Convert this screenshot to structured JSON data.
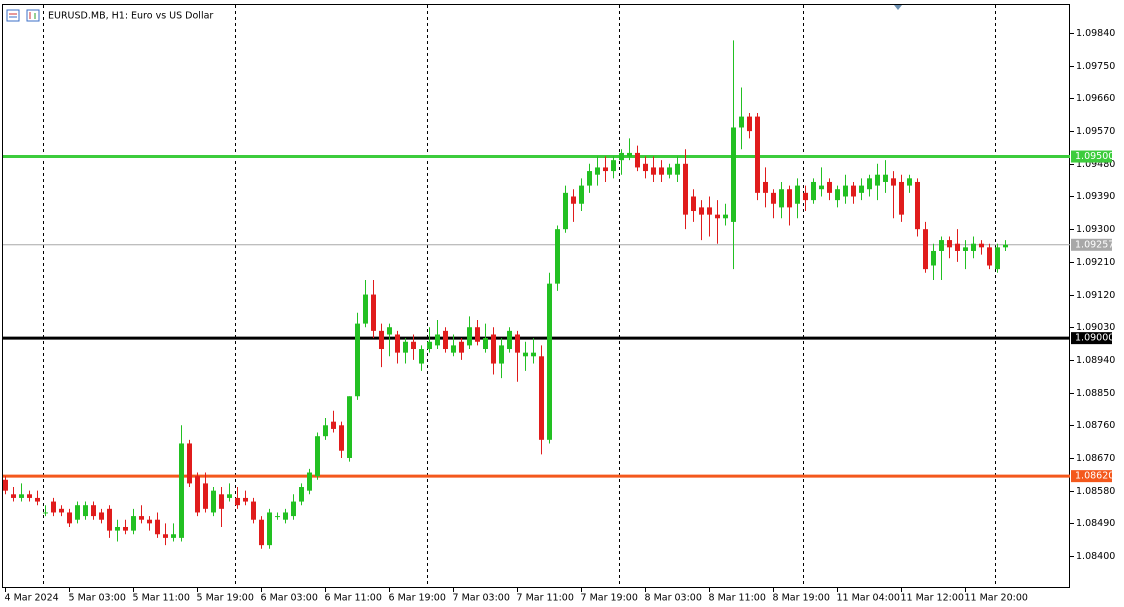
{
  "chart_data": {
    "type": "candlestick",
    "title": "EURUSD.MB, H1:  Euro vs US Dollar",
    "up_color": "#22c022",
    "down_color": "#e01c1c",
    "categories": [
      "4 Mar 2024",
      null,
      null,
      null,
      null,
      null,
      null,
      null,
      "5 Mar 03:00",
      null,
      null,
      null,
      null,
      null,
      null,
      null,
      "5 Mar 11:00",
      null,
      null,
      null,
      null,
      null,
      null,
      null,
      "5 Mar 19:00",
      null,
      null,
      null,
      null,
      null,
      null,
      null,
      "6 Mar 03:00",
      null,
      null,
      null,
      null,
      null,
      null,
      null,
      "6 Mar 11:00",
      null,
      null,
      null,
      null,
      null,
      null,
      null,
      "6 Mar 19:00",
      null,
      null,
      null,
      null,
      null,
      null,
      null,
      "7 Mar 03:00",
      null,
      null,
      null,
      null,
      null,
      null,
      null,
      "7 Mar 11:00",
      null,
      null,
      null,
      null,
      null,
      null,
      null,
      "7 Mar 19:00",
      null,
      null,
      null,
      null,
      null,
      null,
      null,
      "8 Mar 03:00",
      null,
      null,
      null,
      null,
      null,
      null,
      null,
      "8 Mar 11:00",
      null,
      null,
      null,
      null,
      null,
      null,
      null,
      "8 Mar 19:00",
      null,
      null,
      null,
      null,
      null,
      null,
      null,
      "11 Mar 04:00",
      null,
      null,
      null,
      null,
      null,
      null,
      null,
      "11 Mar 12:00",
      null,
      null,
      null,
      null,
      null,
      null,
      null,
      "11 Mar 20:00",
      null,
      null,
      null,
      null,
      null
    ],
    "open": [
      1.0861,
      1.0857,
      1.0856,
      1.0857,
      1.0856,
      1.0852,
      1.0855,
      1.0853,
      1.0852,
      1.085,
      1.0851,
      1.0854,
      1.0852,
      1.0853,
      1.0847,
      1.0848,
      1.0847,
      1.0851,
      1.085,
      1.085,
      1.0846,
      1.0845,
      1.0845,
      1.0871,
      1.0862,
      1.086,
      1.0852,
      1.0857,
      1.0856,
      1.0856,
      1.0856,
      1.0855,
      1.085,
      1.0843,
      1.0851,
      1.085,
      1.0851,
      1.0855,
      1.0858,
      1.0862,
      1.0873,
      1.0877,
      1.0876,
      1.0867,
      1.0884,
      1.0904,
      1.0912,
      1.0902,
      1.0901,
      1.0901,
      1.0896,
      1.0899,
      1.0893,
      1.0897,
      1.0898,
      1.0902,
      1.0896,
      1.0899,
      1.0898,
      1.0903,
      1.0897,
      1.0901,
      1.0893,
      1.0897,
      1.0901,
      1.0895,
      1.0895,
      1.0895,
      1.0872,
      1.0915,
      1.093,
      1.0939,
      1.0937,
      1.0942,
      1.0945,
      1.0947,
      1.0946,
      1.0949,
      1.095,
      1.0951,
      1.0948,
      1.0947,
      1.0947,
      1.0945,
      1.0945,
      1.0948,
      1.0939,
      1.0936,
      1.0936,
      1.0934,
      1.0933,
      1.0932,
      1.0958,
      1.0961,
      1.0961,
      1.0943,
      1.094,
      1.0936,
      1.0941,
      1.0937,
      1.094,
      1.0938,
      1.0941,
      1.0943,
      1.0938,
      1.0939,
      1.0942,
      1.094,
      1.0941,
      1.0942,
      1.0943,
      1.0944,
      1.0943,
      1.0942,
      1.0943,
      1.093,
      1.092,
      1.0924,
      1.0927,
      1.0926,
      1.0924,
      1.0924,
      1.0926,
      1.0925,
      1.0919,
      1.0925
    ],
    "high": [
      1.0862,
      1.0859,
      1.086,
      1.0858,
      1.0858,
      1.0854,
      1.0856,
      1.0854,
      1.0853,
      1.0855,
      1.0855,
      1.0855,
      1.0853,
      1.0854,
      1.085,
      1.085,
      1.0853,
      1.0854,
      1.0851,
      1.0852,
      1.0849,
      1.0849,
      1.0876,
      1.0872,
      1.0863,
      1.0863,
      1.0859,
      1.0859,
      1.086,
      1.0859,
      1.0858,
      1.0856,
      1.0851,
      1.0853,
      1.0852,
      1.0853,
      1.0857,
      1.086,
      1.0864,
      1.0874,
      1.0878,
      1.088,
      1.0877,
      1.0884,
      1.0907,
      1.0916,
      1.0916,
      1.0904,
      1.0904,
      1.0902,
      1.09,
      1.0901,
      1.0898,
      1.0903,
      1.0905,
      1.0903,
      1.0901,
      1.09,
      1.0906,
      1.0905,
      1.0904,
      1.0903,
      1.09,
      1.0903,
      1.0902,
      1.0899,
      1.09,
      1.0898,
      1.0918,
      1.0931,
      1.0942,
      1.0941,
      1.0944,
      1.0948,
      1.095,
      1.095,
      1.095,
      1.0952,
      1.0955,
      1.0953,
      1.095,
      1.095,
      1.0949,
      1.0948,
      1.095,
      1.0952,
      1.0941,
      1.0938,
      1.0939,
      1.0938,
      1.0937,
      1.0982,
      1.0969,
      1.0962,
      1.0962,
      1.0947,
      1.0941,
      1.0943,
      1.0942,
      1.0944,
      1.0942,
      1.0944,
      1.0947,
      1.0944,
      1.0942,
      1.0945,
      1.0943,
      1.0944,
      1.0945,
      1.0948,
      1.0949,
      1.0946,
      1.0945,
      1.0945,
      1.0944,
      1.0932,
      1.0926,
      1.0928,
      1.0928,
      1.093,
      1.0927,
      1.0928,
      1.0927,
      1.0926,
      1.0926,
      1.0927
    ],
    "low": [
      1.0857,
      1.0855,
      1.0855,
      1.0855,
      1.0854,
      1.0851,
      1.0851,
      1.0851,
      1.0848,
      1.0849,
      1.085,
      1.085,
      1.0849,
      1.0845,
      1.0844,
      1.0846,
      1.0846,
      1.0849,
      1.0847,
      1.0845,
      1.0843,
      1.0844,
      1.0844,
      1.0859,
      1.0851,
      1.0852,
      1.0851,
      1.0848,
      1.0855,
      1.0853,
      1.0854,
      1.0849,
      1.0842,
      1.0842,
      1.085,
      1.0849,
      1.085,
      1.0854,
      1.0857,
      1.0861,
      1.0872,
      1.0874,
      1.0867,
      1.0866,
      1.0883,
      1.0903,
      1.09,
      1.0892,
      1.0895,
      1.0893,
      1.0893,
      1.0894,
      1.0891,
      1.0896,
      1.0897,
      1.0896,
      1.0895,
      1.0894,
      1.0897,
      1.0898,
      1.0896,
      1.089,
      1.0889,
      1.0896,
      1.0888,
      1.0891,
      1.0893,
      1.0868,
      1.0871,
      1.0913,
      1.0929,
      1.0932,
      1.0935,
      1.094,
      1.0942,
      1.0943,
      1.0944,
      1.0945,
      1.0949,
      1.0946,
      1.0944,
      1.0943,
      1.0943,
      1.0944,
      1.0943,
      1.093,
      1.0932,
      1.0927,
      1.0928,
      1.0926,
      1.0931,
      1.0919,
      1.0952,
      1.0955,
      1.0938,
      1.0936,
      1.0933,
      1.0933,
      1.0931,
      1.0933,
      1.0935,
      1.0937,
      1.0939,
      1.0938,
      1.0936,
      1.0937,
      1.0937,
      1.0938,
      1.0939,
      1.0938,
      1.094,
      1.0933,
      1.0932,
      1.094,
      1.0928,
      1.0918,
      1.0916,
      1.0916,
      1.0922,
      1.0921,
      1.0919,
      1.0922,
      1.0923,
      1.0919,
      1.0918,
      1.0924
    ],
    "close": [
      1.0858,
      1.0856,
      1.0857,
      1.0856,
      1.0855,
      1.0852,
      1.0852,
      1.0852,
      1.0849,
      1.0854,
      1.0854,
      1.0851,
      1.085,
      1.0847,
      1.0848,
      1.0847,
      1.0851,
      1.085,
      1.0849,
      1.0846,
      1.0845,
      1.0846,
      1.0871,
      1.086,
      1.0852,
      1.0853,
      1.0858,
      1.0853,
      1.0857,
      1.0854,
      1.0855,
      1.085,
      1.0843,
      1.0852,
      1.0851,
      1.0852,
      1.0855,
      1.0859,
      1.0863,
      1.0873,
      1.0876,
      1.0875,
      1.0869,
      1.0884,
      1.0904,
      1.0912,
      1.0902,
      1.0897,
      1.0903,
      1.0896,
      1.0899,
      1.0897,
      1.0897,
      1.0899,
      1.0901,
      1.0897,
      1.0898,
      1.0896,
      1.0903,
      1.0899,
      1.09,
      1.0893,
      1.0898,
      1.0902,
      1.0896,
      1.0896,
      1.0896,
      1.0872,
      1.0915,
      1.093,
      1.094,
      1.0937,
      1.0942,
      1.0946,
      1.0947,
      1.0946,
      1.0949,
      1.0951,
      1.0951,
      1.0947,
      1.0946,
      1.0945,
      1.0945,
      1.0947,
      1.0948,
      1.0934,
      1.0935,
      1.0934,
      1.0934,
      1.0933,
      1.0934,
      1.0958,
      1.0961,
      1.0957,
      1.094,
      1.094,
      1.0937,
      1.0941,
      1.0936,
      1.0942,
      1.0938,
      1.0943,
      1.0942,
      1.094,
      1.0941,
      1.0942,
      1.0939,
      1.0942,
      1.0944,
      1.0945,
      1.0945,
      1.0942,
      1.0934,
      1.0944,
      1.093,
      1.0919,
      1.0924,
      1.0927,
      1.0925,
      1.0924,
      1.0925,
      1.0926,
      1.0925,
      1.092,
      1.0925,
      1.09257
    ],
    "ylim": [
      1.08312,
      1.0992
    ],
    "yticks": [
      {
        "value": 1.0984,
        "label": "1.09840"
      },
      {
        "value": 1.0975,
        "label": "1.09750"
      },
      {
        "value": 1.0966,
        "label": "1.09660"
      },
      {
        "value": 1.0957,
        "label": "1.09570"
      },
      {
        "value": 1.0948,
        "label": "1.09480"
      },
      {
        "value": 1.0939,
        "label": "1.09390"
      },
      {
        "value": 1.093,
        "label": "1.09300"
      },
      {
        "value": 1.0921,
        "label": "1.09210"
      },
      {
        "value": 1.0912,
        "label": "1.09120"
      },
      {
        "value": 1.0903,
        "label": "1.09030"
      },
      {
        "value": 1.0894,
        "label": "1.08940"
      },
      {
        "value": 1.0885,
        "label": "1.08850"
      },
      {
        "value": 1.0876,
        "label": "1.08760"
      },
      {
        "value": 1.0867,
        "label": "1.08670"
      },
      {
        "value": 1.0858,
        "label": "1.08580"
      },
      {
        "value": 1.0849,
        "label": "1.08490"
      },
      {
        "value": 1.084,
        "label": "1.08400"
      }
    ],
    "hlines": [
      {
        "value": 1.095,
        "label": "1.09500",
        "color": "#3ccc3c",
        "width": 3
      },
      {
        "value": 1.09,
        "label": "1.09000",
        "color": "#000000",
        "width": 3
      },
      {
        "value": 1.0862,
        "label": "1.08620",
        "color": "#f4581c",
        "width": 3
      },
      {
        "value": 1.09257,
        "label": "1.09257",
        "color": "#a8a8a8",
        "width": 1
      }
    ]
  }
}
